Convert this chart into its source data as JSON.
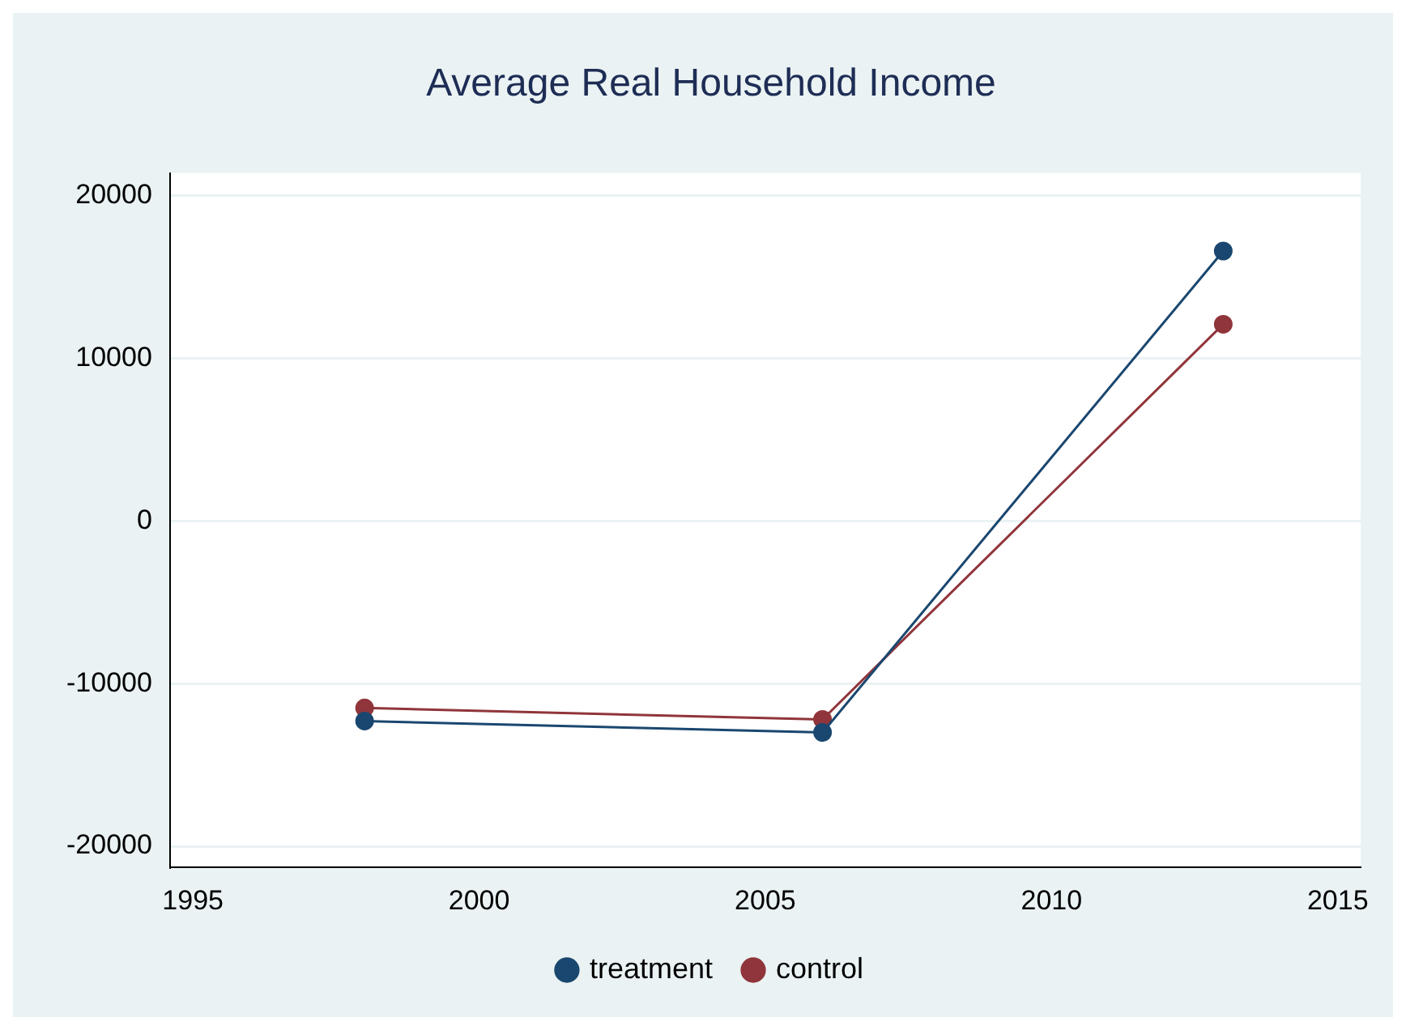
{
  "chart_data": {
    "type": "line",
    "title": "Average Real Household Income",
    "x": [
      1998,
      2006,
      2013
    ],
    "series": [
      {
        "name": "treatment",
        "color": "#1a476f",
        "values": [
          -12300,
          -13000,
          16600
        ]
      },
      {
        "name": "control",
        "color": "#90353b",
        "values": [
          -11500,
          -12200,
          12100
        ]
      }
    ],
    "xlim": [
      1994.6,
      2015.4
    ],
    "xticks": [
      1995,
      2000,
      2005,
      2010,
      2015
    ],
    "ylim": [
      -21300,
      21400
    ],
    "yticks": [
      -20000,
      -10000,
      0,
      10000,
      20000
    ],
    "grid": "y",
    "legend": "bottom",
    "marker": "circle",
    "line_style": "solid"
  }
}
